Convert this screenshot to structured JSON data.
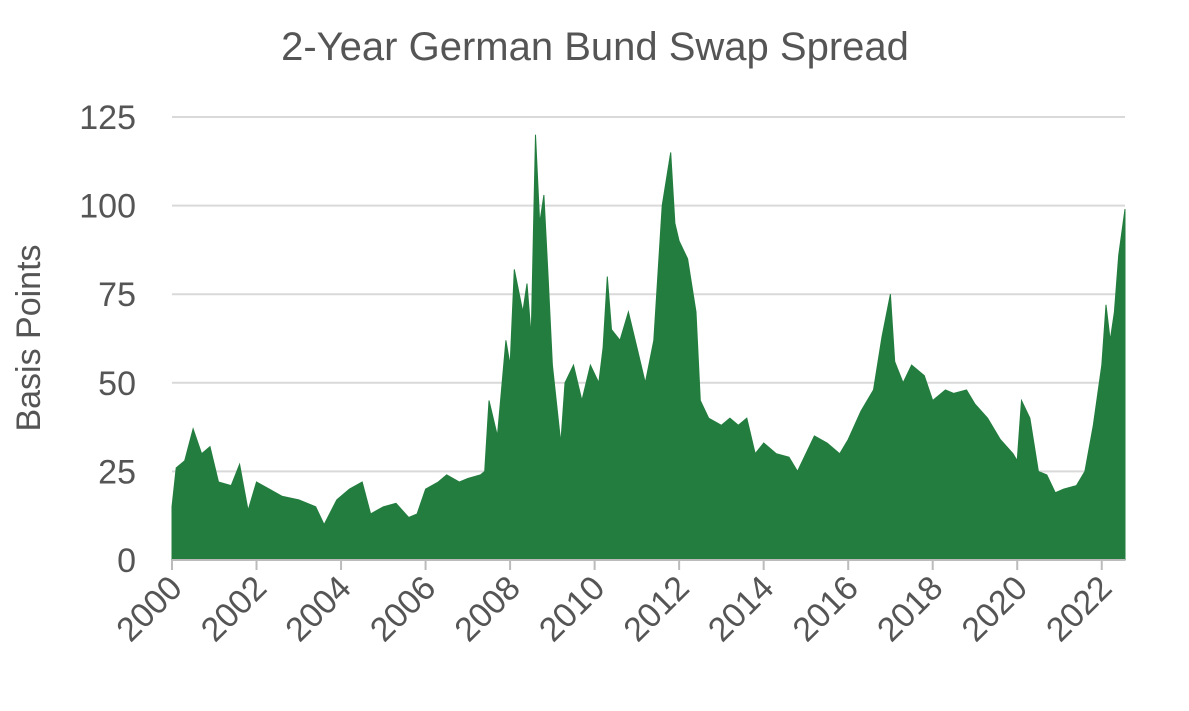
{
  "chart_data": {
    "type": "area",
    "title": "2-Year German Bund Swap Spread",
    "ylabel": "Basis Points",
    "x": [
      2000.0,
      2000.1,
      2000.3,
      2000.5,
      2000.7,
      2000.9,
      2001.1,
      2001.4,
      2001.6,
      2001.8,
      2002.0,
      2002.3,
      2002.6,
      2003.0,
      2003.4,
      2003.6,
      2003.9,
      2004.2,
      2004.5,
      2004.7,
      2005.0,
      2005.3,
      2005.6,
      2005.8,
      2006.0,
      2006.3,
      2006.5,
      2006.8,
      2007.0,
      2007.3,
      2007.4,
      2007.5,
      2007.7,
      2007.9,
      2008.0,
      2008.1,
      2008.3,
      2008.4,
      2008.5,
      2008.6,
      2008.7,
      2008.8,
      2008.9,
      2009.0,
      2009.2,
      2009.3,
      2009.5,
      2009.7,
      2009.9,
      2010.1,
      2010.2,
      2010.3,
      2010.4,
      2010.6,
      2010.8,
      2011.0,
      2011.2,
      2011.4,
      2011.6,
      2011.8,
      2011.9,
      2012.0,
      2012.2,
      2012.4,
      2012.5,
      2012.7,
      2013.0,
      2013.2,
      2013.4,
      2013.6,
      2013.8,
      2014.0,
      2014.3,
      2014.6,
      2014.8,
      2015.0,
      2015.2,
      2015.5,
      2015.8,
      2016.0,
      2016.3,
      2016.6,
      2016.8,
      2017.0,
      2017.1,
      2017.3,
      2017.5,
      2017.8,
      2018.0,
      2018.3,
      2018.5,
      2018.8,
      2019.0,
      2019.3,
      2019.6,
      2019.9,
      2020.0,
      2020.1,
      2020.3,
      2020.5,
      2020.7,
      2020.9,
      2021.1,
      2021.4,
      2021.6,
      2021.8,
      2022.0,
      2022.1,
      2022.2,
      2022.3,
      2022.4,
      2022.55
    ],
    "values": [
      15,
      26,
      28,
      37,
      30,
      32,
      22,
      21,
      27,
      14,
      22,
      20,
      18,
      17,
      15,
      10,
      17,
      20,
      22,
      13,
      15,
      16,
      12,
      13,
      20,
      22,
      24,
      22,
      23,
      24,
      25,
      45,
      35,
      62,
      55,
      82,
      70,
      78,
      63,
      120,
      95,
      103,
      80,
      55,
      33,
      50,
      55,
      45,
      55,
      50,
      60,
      80,
      65,
      62,
      70,
      60,
      50,
      62,
      100,
      115,
      95,
      90,
      85,
      70,
      45,
      40,
      38,
      40,
      38,
      40,
      30,
      33,
      30,
      29,
      25,
      30,
      35,
      33,
      30,
      34,
      42,
      48,
      63,
      75,
      56,
      50,
      55,
      52,
      45,
      48,
      47,
      48,
      44,
      40,
      34,
      30,
      28,
      45,
      40,
      25,
      24,
      19,
      20,
      21,
      25,
      38,
      55,
      72,
      62,
      70,
      86,
      99
    ],
    "color": "#237d3f",
    "xlim": [
      2000,
      2022.55
    ],
    "xticks": [
      2000,
      2002,
      2004,
      2006,
      2008,
      2010,
      2012,
      2014,
      2016,
      2018,
      2020,
      2022
    ],
    "ylim": [
      0,
      125
    ],
    "yticks": [
      0,
      25,
      50,
      75,
      100,
      125
    ],
    "grid": true
  }
}
